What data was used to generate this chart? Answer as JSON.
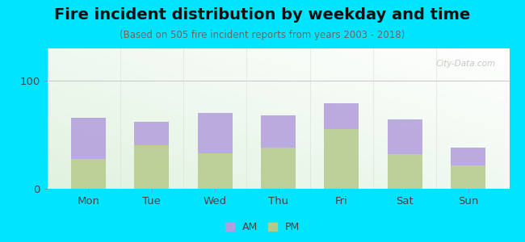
{
  "title": "Fire incident distribution by weekday and time",
  "subtitle": "(Based on 505 fire incident reports from years 2003 - 2018)",
  "days": [
    "Mon",
    "Tue",
    "Wed",
    "Thu",
    "Fri",
    "Sat",
    "Sun"
  ],
  "pm_values": [
    28,
    40,
    33,
    38,
    55,
    32,
    22
  ],
  "am_values": [
    38,
    22,
    37,
    30,
    24,
    32,
    16
  ],
  "am_color": "#b39ddb",
  "pm_color": "#b5c98a",
  "fig_bg_color": "#00e5ff",
  "ylim": [
    0,
    130
  ],
  "yticks": [
    0,
    100
  ],
  "title_fontsize": 14,
  "subtitle_fontsize": 8.5,
  "tick_fontsize": 9.5,
  "watermark": "City-Data.com",
  "bar_width": 0.55
}
